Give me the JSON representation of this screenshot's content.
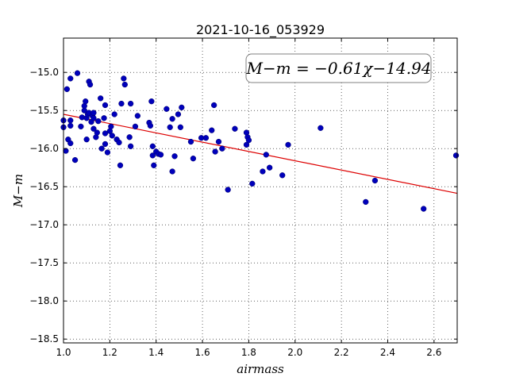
{
  "chart_data": {
    "type": "scatter",
    "title": "2021-10-16_053929",
    "xlabel": "airmass",
    "ylabel": "M−m",
    "xlim": [
      1.0,
      2.7
    ],
    "ylim": [
      -18.55,
      -14.55
    ],
    "y_inverted": true,
    "grid": true,
    "xticks": [
      1.0,
      1.2,
      1.4,
      1.6,
      1.8,
      2.0,
      2.2,
      2.4,
      2.6
    ],
    "xtick_labels": [
      "1.0",
      "1.2",
      "1.4",
      "1.6",
      "1.8",
      "2.0",
      "2.2",
      "2.4",
      "2.6"
    ],
    "yticks": [
      -15.0,
      -15.5,
      -16.0,
      -16.5,
      -17.0,
      -17.5,
      -18.0,
      -18.5
    ],
    "ytick_labels": [
      "−15.0",
      "−15.5",
      "−16.0",
      "−16.5",
      "−17.0",
      "−17.5",
      "−18.0",
      "−18.5"
    ],
    "annotation": "M−m = −0.61χ−14.94",
    "fit": {
      "slope": -0.61,
      "intercept": -14.94,
      "color": "#dd0000"
    },
    "point_color": "#0000bb",
    "points": [
      [
        1.0,
        -15.63
      ],
      [
        1.0,
        -15.72
      ],
      [
        1.01,
        -16.03
      ],
      [
        1.02,
        -15.88
      ],
      [
        1.015,
        -15.22
      ],
      [
        1.03,
        -15.93
      ],
      [
        1.03,
        -15.08
      ],
      [
        1.03,
        -15.63
      ],
      [
        1.03,
        -15.7
      ],
      [
        1.05,
        -16.15
      ],
      [
        1.06,
        -15.01
      ],
      [
        1.075,
        -15.71
      ],
      [
        1.08,
        -15.59
      ],
      [
        1.09,
        -15.5
      ],
      [
        1.09,
        -15.44
      ],
      [
        1.095,
        -15.38
      ],
      [
        1.1,
        -15.88
      ],
      [
        1.1,
        -15.6
      ],
      [
        1.105,
        -15.55
      ],
      [
        1.11,
        -15.53
      ],
      [
        1.11,
        -15.12
      ],
      [
        1.115,
        -15.16
      ],
      [
        1.12,
        -15.65
      ],
      [
        1.125,
        -15.57
      ],
      [
        1.13,
        -15.53
      ],
      [
        1.13,
        -15.74
      ],
      [
        1.13,
        -15.6
      ],
      [
        1.14,
        -15.85
      ],
      [
        1.145,
        -15.79
      ],
      [
        1.15,
        -15.64
      ],
      [
        1.16,
        -15.34
      ],
      [
        1.165,
        -16.0
      ],
      [
        1.175,
        -15.6
      ],
      [
        1.18,
        -15.94
      ],
      [
        1.18,
        -15.8
      ],
      [
        1.18,
        -15.43
      ],
      [
        1.19,
        -16.05
      ],
      [
        1.2,
        -15.77
      ],
      [
        1.205,
        -15.71
      ],
      [
        1.21,
        -15.83
      ],
      [
        1.22,
        -15.55
      ],
      [
        1.23,
        -15.88
      ],
      [
        1.24,
        -15.92
      ],
      [
        1.245,
        -16.22
      ],
      [
        1.25,
        -15.41
      ],
      [
        1.26,
        -15.08
      ],
      [
        1.265,
        -15.16
      ],
      [
        1.285,
        -15.85
      ],
      [
        1.29,
        -15.97
      ],
      [
        1.29,
        -15.41
      ],
      [
        1.31,
        -15.71
      ],
      [
        1.32,
        -15.57
      ],
      [
        1.37,
        -15.66
      ],
      [
        1.375,
        -15.7
      ],
      [
        1.38,
        -15.38
      ],
      [
        1.385,
        -15.97
      ],
      [
        1.385,
        -16.09
      ],
      [
        1.39,
        -16.22
      ],
      [
        1.4,
        -16.04
      ],
      [
        1.41,
        -16.07
      ],
      [
        1.42,
        -16.08
      ],
      [
        1.445,
        -15.48
      ],
      [
        1.46,
        -15.72
      ],
      [
        1.47,
        -15.61
      ],
      [
        1.47,
        -16.3
      ],
      [
        1.48,
        -16.1
      ],
      [
        1.495,
        -15.55
      ],
      [
        1.505,
        -15.72
      ],
      [
        1.51,
        -15.46
      ],
      [
        1.55,
        -15.91
      ],
      [
        1.56,
        -16.13
      ],
      [
        1.595,
        -15.86
      ],
      [
        1.615,
        -15.86
      ],
      [
        1.64,
        -15.76
      ],
      [
        1.65,
        -15.43
      ],
      [
        1.655,
        -16.04
      ],
      [
        1.67,
        -15.91
      ],
      [
        1.685,
        -16.0
      ],
      [
        1.71,
        -16.54
      ],
      [
        1.74,
        -15.74
      ],
      [
        1.79,
        -15.79
      ],
      [
        1.79,
        -15.95
      ],
      [
        1.795,
        -15.85
      ],
      [
        1.8,
        -15.89
      ],
      [
        1.815,
        -16.46
      ],
      [
        1.86,
        -16.3
      ],
      [
        1.875,
        -16.08
      ],
      [
        1.89,
        -16.25
      ],
      [
        1.945,
        -16.35
      ],
      [
        1.97,
        -15.95
      ],
      [
        2.11,
        -15.73
      ],
      [
        2.305,
        -16.7
      ],
      [
        2.345,
        -16.42
      ],
      [
        2.555,
        -16.79
      ],
      [
        2.695,
        -16.09
      ]
    ]
  }
}
